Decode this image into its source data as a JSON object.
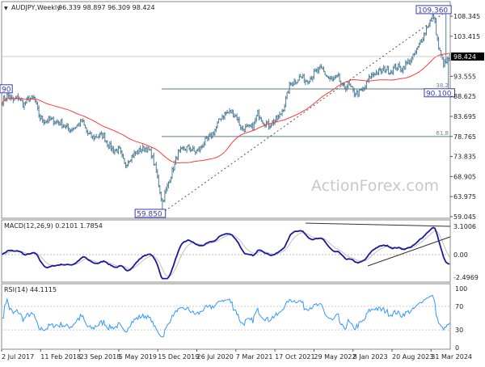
{
  "header": {
    "symbol": "AUDJPY,Weekly",
    "ohlc": "96.339 98.897 96.309 98.424"
  },
  "watermark": "ActionForex.com",
  "chart_data": [
    {
      "type": "bar",
      "title": "AUDJPY,Weekly",
      "timeframe": "Weekly",
      "ylim": [
        59.045,
        108.345
      ],
      "yticks": [
        "108.345",
        "103.415",
        "93.555",
        "88.625",
        "83.695",
        "78.765",
        "73.835",
        "68.905",
        "63.975",
        "59.045"
      ],
      "current_price": "98.424",
      "xtick_labels": [
        "2 Jul 2017",
        "11 Feb 2018",
        "23 Sep 2018",
        "5 May 2019",
        "15 Dec 2019",
        "26 Jul 2020",
        "7 Mar 2021",
        "17 Oct 2021",
        "29 May 2022",
        "8 Jan 2023",
        "20 Aug 2023",
        "31 Mar 2024"
      ],
      "closes_approx": [
        87.5,
        88.9,
        87.5,
        88.5,
        86.5,
        88.1,
        88.1,
        83.5,
        82.5,
        82.9,
        82.5,
        82.1,
        80.9,
        80.5,
        81.5,
        82.5,
        79.5,
        78.5,
        78.9,
        79.1,
        76.5,
        75.2,
        75.5,
        71.6,
        73.6,
        74.6,
        75.5,
        75.9,
        74.6,
        69.6,
        62.6,
        66.4,
        70.6,
        74.6,
        75.5,
        76.1,
        75.0,
        75.5,
        77.5,
        78.5,
        80.5,
        83.5,
        84.5,
        84.9,
        83.5,
        80.5,
        80.9,
        80.9,
        84.5,
        82.5,
        81.5,
        82.5,
        83.5,
        86.5,
        91.5,
        92.4,
        93.4,
        92.4,
        93.4,
        94.8,
        95.4,
        93.4,
        92.4,
        93.4,
        90.5,
        91.5,
        89.5,
        89.5,
        90.5,
        93.4,
        94.4,
        94.8,
        95.4,
        94.8,
        96.0,
        95.4,
        96.8,
        98.0,
        100.4,
        103.4,
        106.4,
        108.5,
        100.0,
        96.3,
        98.424
      ],
      "moving_average": {
        "color": "#ff3b3b"
      },
      "bar_color": "#4f7f98",
      "annotations": [
        {
          "label": "109.360",
          "price": 109.36
        },
        {
          "label": "59.850",
          "price": 59.85
        },
        {
          "label": "90.100",
          "price": 90.1
        },
        {
          "label": "90",
          "price": 90.29
        }
      ],
      "fibonacci": [
        {
          "label": "38.2",
          "price": 90.45
        },
        {
          "label": "61.8",
          "price": 78.76
        }
      ]
    },
    {
      "type": "line",
      "title": "MACD(12,26,9) 0.2101 1.7854",
      "ylim": [
        -2.4969,
        3.1006
      ],
      "yticks": [
        "3.1006",
        "0.00",
        "-2.4969"
      ],
      "series_colors": {
        "macd": "#1a1a9c",
        "signal": "#c0c0c0"
      }
    },
    {
      "type": "line",
      "title": "RSI(14) 44.1115",
      "ylim": [
        0,
        100
      ],
      "yticks": [
        "100",
        "70",
        "30",
        "0"
      ],
      "color": "#3399ff"
    }
  ]
}
